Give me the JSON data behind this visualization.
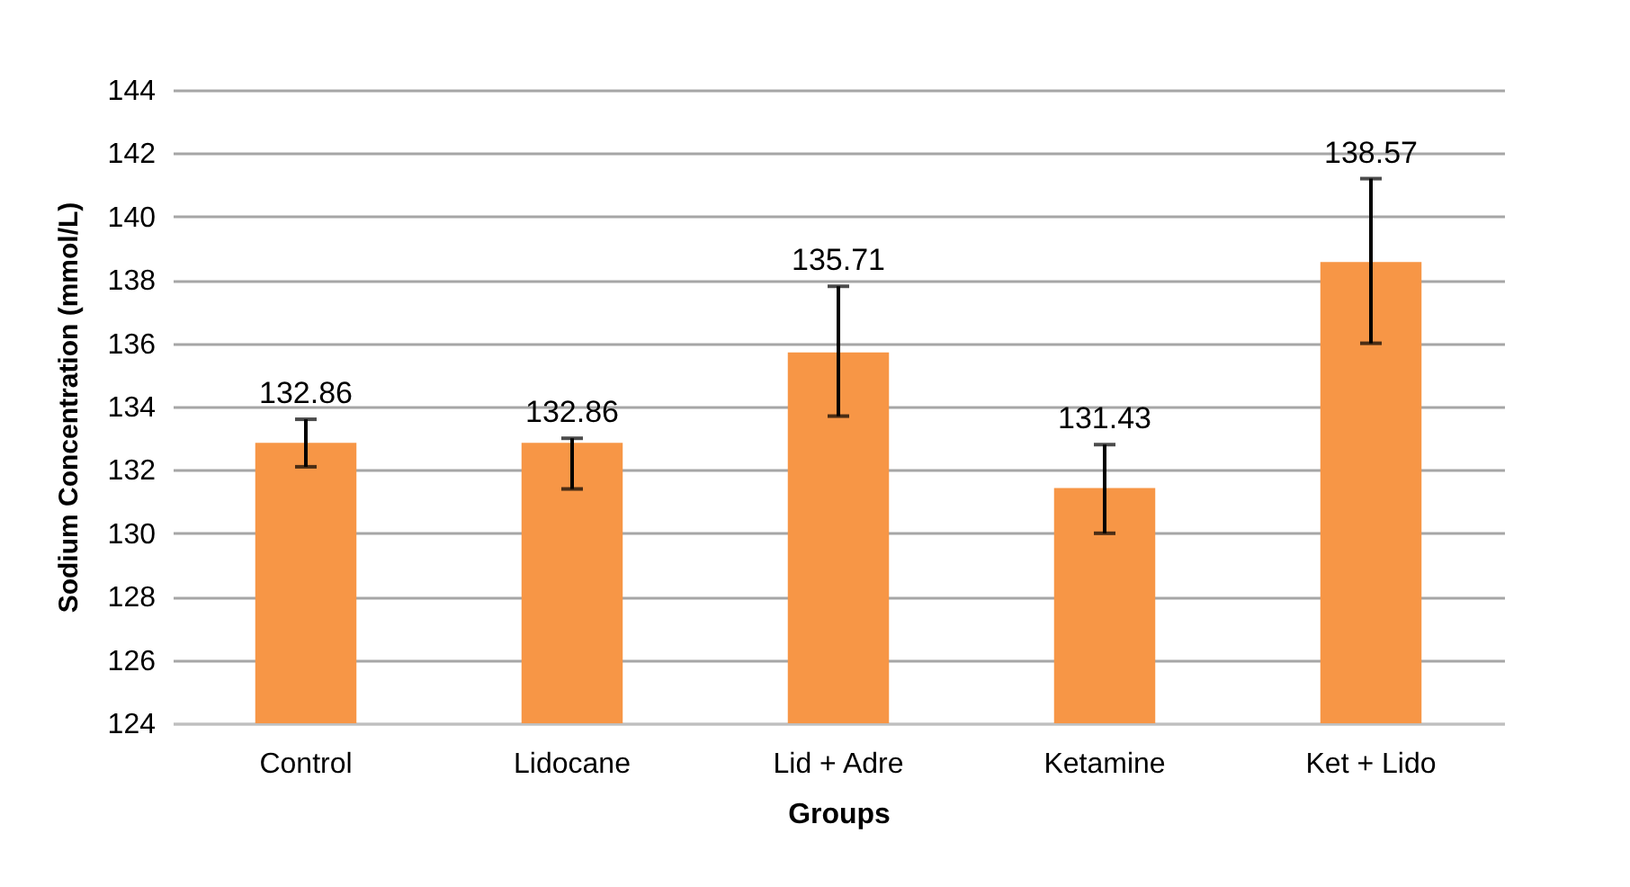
{
  "chart_data": {
    "type": "bar",
    "xlabel": "Groups",
    "ylabel": "Sodium Concentration (mmol/L)",
    "categories": [
      "Control",
      "Lidocane",
      "Lid + Adre",
      "Ketamine",
      "Ket + Lido"
    ],
    "values": [
      132.86,
      132.86,
      135.71,
      131.43,
      138.57
    ],
    "errors": [
      [
        132.1,
        133.6
      ],
      [
        131.4,
        133.0
      ],
      [
        133.7,
        137.8
      ],
      [
        130.0,
        132.8
      ],
      [
        136.0,
        141.2
      ]
    ],
    "color": "#f79646",
    "ylim": [
      124,
      144
    ],
    "yticks": [
      124,
      126,
      128,
      130,
      132,
      134,
      136,
      138,
      140,
      142,
      144
    ],
    "grid": "y",
    "data_labels": true
  }
}
